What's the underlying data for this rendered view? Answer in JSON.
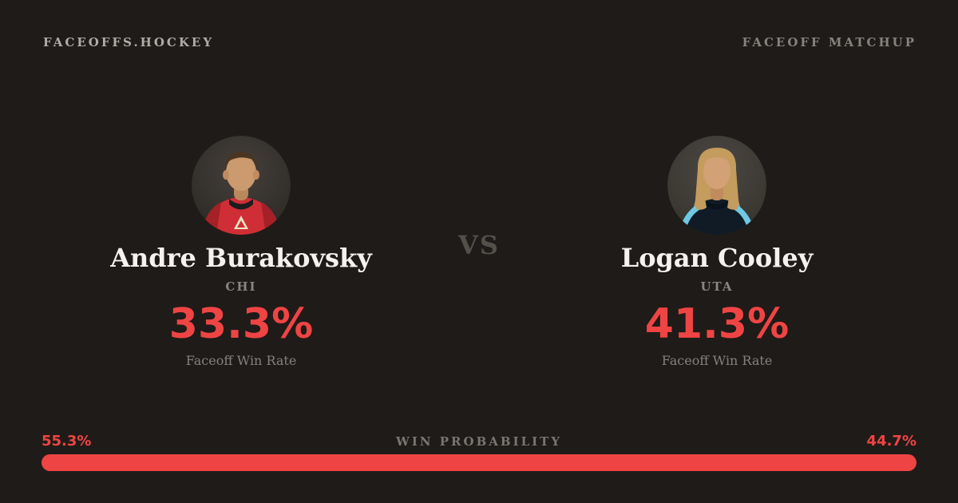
{
  "page": {
    "background": "#1f1b18",
    "accent_red": "#ef4444",
    "text_light": "#f5f2ee",
    "text_muted": "#8b8580"
  },
  "header": {
    "brand": "FACEOFFS.HOCKEY",
    "label": "FACEOFF MATCHUP"
  },
  "matchup": {
    "vs_label": "VS",
    "players": [
      {
        "name": "Andre Burakovsky",
        "team": "CHI",
        "faceoff_win_rate": "33.3%",
        "stat_label": "Faceoff Win Rate",
        "win_probability": "55.3%",
        "avatar": "headshot-red-jersey"
      },
      {
        "name": "Logan Cooley",
        "team": "UTA",
        "faceoff_win_rate": "41.3%",
        "stat_label": "Faceoff Win Rate",
        "win_probability": "44.7%",
        "avatar": "headshot-dark-jersey-long-hair"
      }
    ]
  },
  "win_probability": {
    "label": "WIN PROBABILITY",
    "left_pct": 55.3,
    "right_pct": 44.7,
    "left_color": "#ef4444",
    "right_color": "#ef4444"
  },
  "chart_data": {
    "type": "bar",
    "title": "FACEOFF MATCHUP",
    "categories": [
      "Andre Burakovsky (CHI)",
      "Logan Cooley (UTA)"
    ],
    "series": [
      {
        "name": "Faceoff Win Rate (%)",
        "values": [
          33.3,
          41.3
        ]
      },
      {
        "name": "Win Probability (%)",
        "values": [
          55.3,
          44.7
        ]
      }
    ],
    "xlabel": "",
    "ylabel": "",
    "legend_position": "none",
    "notes": "Win probability rendered as a single horizontal red bar split 55.3 / 44.7 with identical red segments"
  }
}
